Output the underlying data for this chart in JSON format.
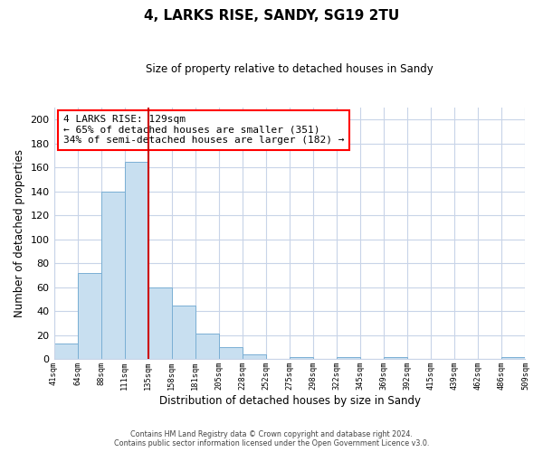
{
  "title": "4, LARKS RISE, SANDY, SG19 2TU",
  "subtitle": "Size of property relative to detached houses in Sandy",
  "xlabel": "Distribution of detached houses by size in Sandy",
  "ylabel": "Number of detached properties",
  "bar_color": "#c8dff0",
  "bar_edge_color": "#7aafd4",
  "background_color": "#ffffff",
  "grid_color": "#c8d4e8",
  "vline_color": "#cc0000",
  "annotation_line1": "4 LARKS RISE: 129sqm",
  "annotation_line2": "← 65% of detached houses are smaller (351)",
  "annotation_line3": "34% of semi-detached houses are larger (182) →",
  "annotation_box_edge": "red",
  "footer_text": "Contains HM Land Registry data © Crown copyright and database right 2024.\nContains public sector information licensed under the Open Government Licence v3.0.",
  "bin_labels": [
    "41sqm",
    "64sqm",
    "88sqm",
    "111sqm",
    "135sqm",
    "158sqm",
    "181sqm",
    "205sqm",
    "228sqm",
    "252sqm",
    "275sqm",
    "298sqm",
    "322sqm",
    "345sqm",
    "369sqm",
    "392sqm",
    "415sqm",
    "439sqm",
    "462sqm",
    "486sqm",
    "509sqm"
  ],
  "bin_values": [
    13,
    72,
    140,
    165,
    60,
    45,
    21,
    10,
    4,
    0,
    2,
    0,
    2,
    0,
    2,
    0,
    0,
    0,
    0,
    2
  ],
  "ylim": [
    0,
    210
  ],
  "yticks": [
    0,
    20,
    40,
    60,
    80,
    100,
    120,
    140,
    160,
    180,
    200
  ],
  "vline_bar_index": 4
}
